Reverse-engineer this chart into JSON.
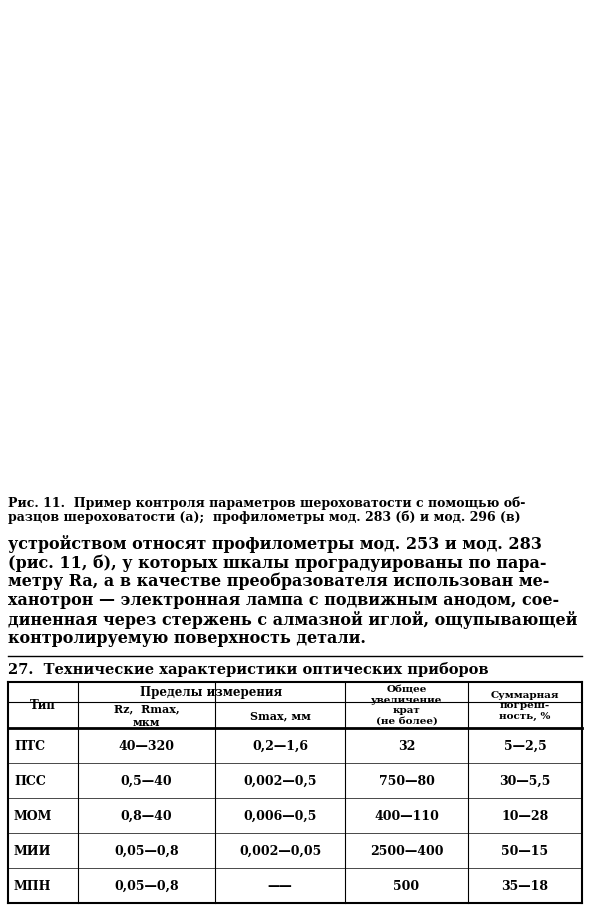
{
  "fig_caption_line1": "Рис. 11.  Пример контроля параметров шероховатости с помощью об-",
  "fig_caption_line2": "разцов шероховатости (а);  профилометры мод. 283 (б) и мод. 296 (в)",
  "para_lines": [
    "устройством относят профилометры мод. 253 и мод. 283",
    "(рис. 11, б), у которых шкалы проградуированы по пара-",
    "метру Ra, а в качестве преобразователя использован ме-",
    "ханотрон — электронная лампа с подвижным анодом, сое-",
    "диненная через стержень с алмазной иглой, ощупывающей",
    "контролируемую поверхность детали."
  ],
  "table_title": "27.  Технические характеристики оптических приборов",
  "col_header_type": "Тип",
  "col_header_pred": "Пределы измерения",
  "col_header_rz": "Rz,  Rmax,\nмкм",
  "col_header_smax": "Smax, мм",
  "col_header_uvel": "Общее\nувеличение\nкрат\n(не более)",
  "col_header_pogr": "Суммарная\nпогреш-\nность, %",
  "rows": [
    [
      "ПТС",
      "40—320",
      "0,2—1,6",
      "32",
      "5—2,5"
    ],
    [
      "ПСС",
      "0,5—40",
      "0,002—0,5",
      "750—80",
      "30—5,5"
    ],
    [
      "МОМ",
      "0,8—40",
      "0,006—0,5",
      "400—110",
      "10—28"
    ],
    [
      "МИИ",
      "0,05—0,8",
      "0,002—0,05",
      "2500—400",
      "50—15"
    ],
    [
      "МПН",
      "0,05—0,8",
      "——",
      "500",
      "35—18"
    ]
  ],
  "bg_color": "#ffffff",
  "text_color": "#000000"
}
